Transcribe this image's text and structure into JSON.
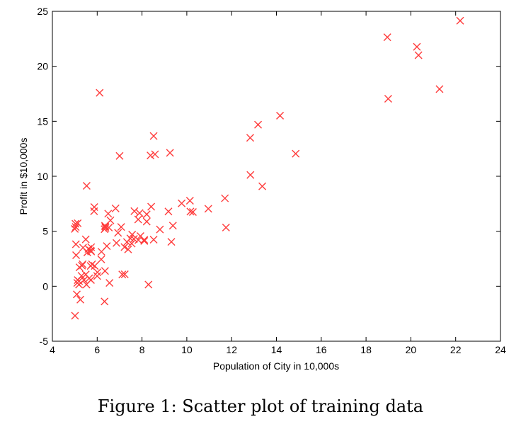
{
  "caption": "Figure 1: Scatter plot of training data",
  "chart_data": {
    "type": "scatter",
    "title": "",
    "xlabel": "Population of City in 10,000s",
    "ylabel": "Profit in $10,000s",
    "xlim": [
      4,
      24
    ],
    "ylim": [
      -5,
      25
    ],
    "xticks": [
      4,
      6,
      8,
      10,
      12,
      14,
      16,
      18,
      20,
      22,
      24
    ],
    "yticks": [
      -5,
      0,
      5,
      10,
      15,
      20,
      25
    ],
    "grid": false,
    "marker": "x",
    "color": "#ff3b3b",
    "series": [
      {
        "points": [
          [
            6.11,
            17.59
          ],
          [
            5.53,
            9.13
          ],
          [
            8.52,
            13.66
          ],
          [
            7.0,
            11.85
          ],
          [
            5.86,
            6.82
          ],
          [
            8.38,
            11.89
          ],
          [
            7.48,
            4.35
          ],
          [
            8.58,
            12.0
          ],
          [
            6.49,
            6.6
          ],
          [
            5.05,
            3.82
          ],
          [
            5.71,
            3.25
          ],
          [
            14.16,
            15.51
          ],
          [
            5.73,
            3.16
          ],
          [
            8.41,
            7.23
          ],
          [
            5.64,
            0.72
          ],
          [
            5.37,
            3.51
          ],
          [
            6.37,
            5.3
          ],
          [
            5.13,
            0.56
          ],
          [
            6.43,
            3.65
          ],
          [
            7.07,
            5.39
          ],
          [
            6.19,
            3.14
          ],
          [
            20.27,
            21.77
          ],
          [
            5.49,
            4.26
          ],
          [
            6.33,
            5.19
          ],
          [
            5.56,
            3.08
          ],
          [
            18.95,
            22.64
          ],
          [
            12.83,
            13.5
          ],
          [
            10.96,
            7.05
          ],
          [
            13.18,
            14.69
          ],
          [
            22.2,
            24.15
          ],
          [
            5.25,
            -1.22
          ],
          [
            6.59,
            5.99
          ],
          [
            9.25,
            12.13
          ],
          [
            5.89,
            1.85
          ],
          [
            8.21,
            6.54
          ],
          [
            7.93,
            4.56
          ],
          [
            8.1,
            4.12
          ],
          [
            5.61,
            3.39
          ],
          [
            12.84,
            10.12
          ],
          [
            6.35,
            5.5
          ],
          [
            5.41,
            0.56
          ],
          [
            6.86,
            3.93
          ],
          [
            5.01,
            -2.68
          ],
          [
            5.11,
            0.3
          ],
          [
            5.73,
            3.55
          ],
          [
            5.19,
            0.15
          ],
          [
            6.36,
            5.42
          ],
          [
            9.77,
            7.54
          ],
          [
            6.52,
            5.34
          ],
          [
            8.52,
            4.24
          ],
          [
            9.18,
            6.8
          ],
          [
            6.0,
            0.93
          ],
          [
            5.52,
            0.15
          ],
          [
            5.06,
            2.82
          ],
          [
            5.71,
            1.85
          ],
          [
            7.64,
            4.3
          ],
          [
            5.87,
            7.2
          ],
          [
            5.77,
            1.99
          ],
          [
            7.22,
            3.56
          ],
          [
            7.89,
            6.65
          ],
          [
            5.0,
            5.21
          ],
          [
            6.93,
            4.86
          ],
          [
            8.1,
            4.22
          ],
          [
            7.56,
            4.7
          ],
          [
            8.21,
            5.88
          ],
          [
            7.38,
            3.35
          ],
          [
            7.84,
            4.2
          ],
          [
            10.16,
            6.79
          ],
          [
            11.7,
            8.0
          ],
          [
            18.99,
            17.05
          ],
          [
            13.37,
            9.09
          ],
          [
            9.38,
            5.51
          ],
          [
            6.82,
            7.08
          ],
          [
            5.72,
            0.57
          ],
          [
            5.09,
            -0.74
          ],
          [
            7.66,
            6.83
          ],
          [
            14.86,
            12.05
          ],
          [
            7.83,
            6.07
          ],
          [
            5.21,
            1.72
          ],
          [
            5.13,
            5.73
          ],
          [
            5.19,
            0.46
          ],
          [
            6.35,
            1.39
          ],
          [
            6.33,
            -1.39
          ],
          [
            21.28,
            17.93
          ],
          [
            10.27,
            6.75
          ],
          [
            5.49,
            1.07
          ],
          [
            20.34,
            21.01
          ],
          [
            10.14,
            7.78
          ],
          [
            7.33,
            4.02
          ],
          [
            6.01,
            1.27
          ],
          [
            7.23,
            1.08
          ],
          [
            5.03,
            5.68
          ],
          [
            6.55,
            0.3
          ],
          [
            7.54,
            3.88
          ],
          [
            5.04,
            5.39
          ],
          [
            9.31,
            4.04
          ],
          [
            7.12,
            1.07
          ],
          [
            5.35,
            2.0
          ],
          [
            5.3,
            0.95
          ],
          [
            6.18,
            2.44
          ],
          [
            8.29,
            0.15
          ],
          [
            11.75,
            5.34
          ],
          [
            8.8,
            5.16
          ],
          [
            5.32,
            1.87
          ]
        ]
      }
    ]
  }
}
